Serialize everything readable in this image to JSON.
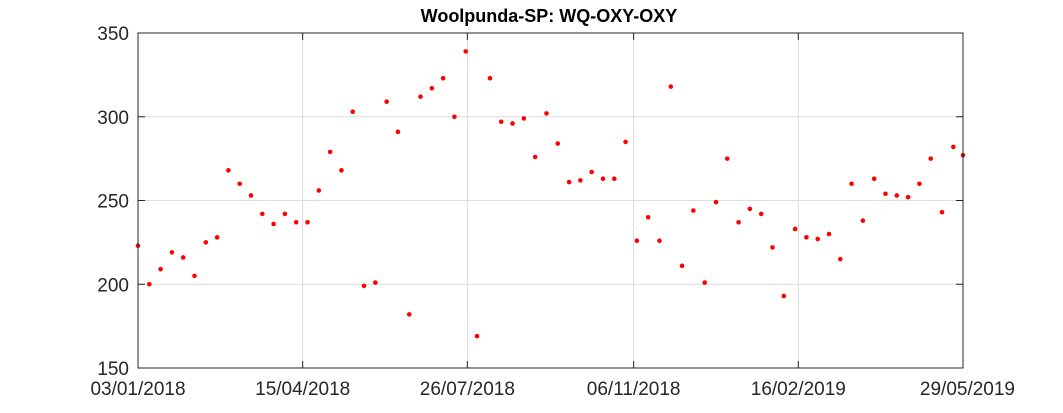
{
  "chart_data": {
    "type": "scatter",
    "title": "Woolpunda-SP: WQ-OXY-OXY",
    "xlabel": "",
    "ylabel": "",
    "xlim": [
      "03/01/2018",
      "29/05/2019"
    ],
    "ylim": [
      150,
      350
    ],
    "x_ticks": [
      "03/01/2018",
      "15/04/2018",
      "26/07/2018",
      "06/11/2018",
      "16/02/2019",
      "29/05/2019"
    ],
    "y_ticks": [
      150,
      200,
      250,
      300,
      350
    ],
    "grid": true,
    "legend": "none",
    "marker_color": "#ff0000",
    "series": [
      {
        "x": [
          "03/01/2018",
          "10/01/2018",
          "17/01/2018",
          "24/01/2018",
          "31/01/2018",
          "07/02/2018",
          "14/02/2018",
          "21/02/2018",
          "28/02/2018",
          "07/03/2018",
          "14/03/2018",
          "21/03/2018",
          "28/03/2018",
          "04/04/2018",
          "11/04/2018",
          "18/04/2018",
          "25/04/2018",
          "02/05/2018",
          "09/05/2018",
          "16/05/2018",
          "23/05/2018",
          "30/05/2018",
          "06/06/2018",
          "13/06/2018",
          "20/06/2018",
          "27/06/2018",
          "04/07/2018",
          "11/07/2018",
          "18/07/2018",
          "25/07/2018",
          "01/08/2018",
          "09/08/2018",
          "16/08/2018",
          "23/08/2018",
          "30/08/2018",
          "06/09/2018",
          "13/09/2018",
          "20/09/2018",
          "27/09/2018",
          "04/10/2018",
          "11/10/2018",
          "18/10/2018",
          "25/10/2018",
          "01/11/2018",
          "08/11/2018",
          "15/11/2018",
          "22/11/2018",
          "29/11/2018",
          "06/12/2018",
          "13/12/2018",
          "20/12/2018",
          "27/12/2018",
          "03/01/2019",
          "10/01/2019",
          "17/01/2019",
          "24/01/2019",
          "31/01/2019",
          "07/02/2019",
          "14/02/2019",
          "21/02/2019",
          "28/02/2019",
          "07/03/2019",
          "14/03/2019",
          "21/03/2019",
          "28/03/2019",
          "04/04/2019",
          "11/04/2019",
          "18/04/2019",
          "25/04/2019",
          "02/05/2019",
          "09/05/2019",
          "16/05/2019",
          "23/05/2019",
          "29/05/2019"
        ],
        "y": [
          223,
          200,
          209,
          219,
          216,
          205,
          225,
          228,
          268,
          260,
          253,
          242,
          236,
          242,
          237,
          237,
          256,
          279,
          268,
          303,
          199,
          201,
          309,
          291,
          182,
          312,
          317,
          323,
          300,
          339,
          169,
          323,
          297,
          296,
          299,
          276,
          302,
          284,
          261,
          262,
          267,
          263,
          263,
          285,
          226,
          240,
          226,
          318,
          211,
          244,
          201,
          249,
          275,
          237,
          245,
          242,
          222,
          193,
          233,
          228,
          227,
          230,
          215,
          260,
          238,
          263,
          254,
          253,
          252,
          260,
          275,
          243,
          282,
          277
        ]
      }
    ]
  }
}
